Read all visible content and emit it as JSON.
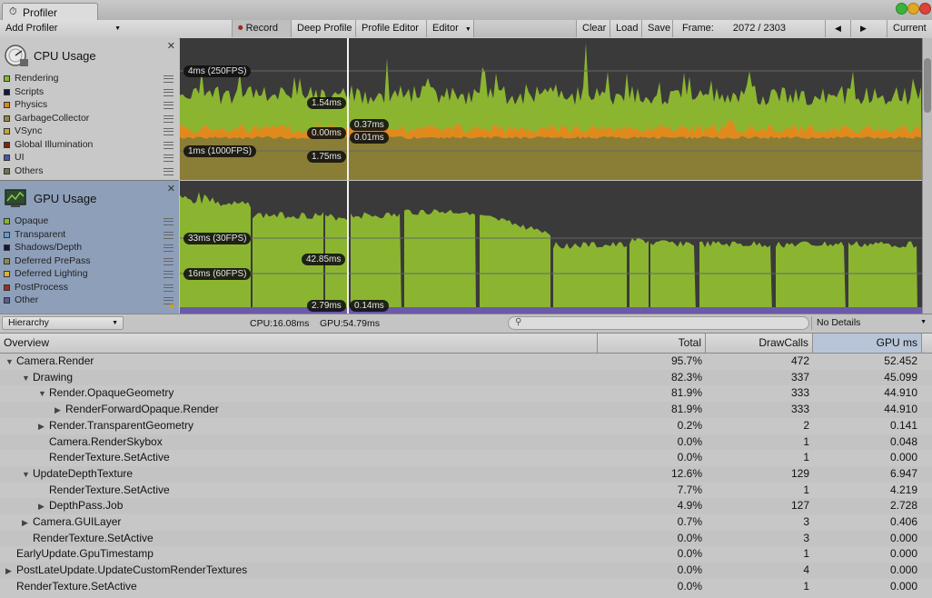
{
  "window": {
    "tab_title": "Profiler"
  },
  "toolbar": {
    "add_profiler": "Add Profiler",
    "record": "Record",
    "deep_profile": "Deep Profile",
    "profile_editor": "Profile Editor",
    "editor": "Editor",
    "clear": "Clear",
    "load": "Load",
    "save": "Save",
    "frame_label": "Frame:",
    "frame_value": "2072 / 2303",
    "prev": "◀",
    "next": "▶",
    "current": "Current"
  },
  "cpu": {
    "title": "CPU Usage",
    "legend": [
      {
        "label": "Rendering",
        "color": "#8bb531"
      },
      {
        "label": "Scripts",
        "color": "#15173c"
      },
      {
        "label": "Physics",
        "color": "#d5881e"
      },
      {
        "label": "GarbageCollector",
        "color": "#8d8a4b"
      },
      {
        "label": "VSync",
        "color": "#c8a52f"
      },
      {
        "label": "Global Illumination",
        "color": "#7b2416"
      },
      {
        "label": "UI",
        "color": "#4c56a4"
      },
      {
        "label": "Others",
        "color": "#76734a"
      }
    ],
    "labels": {
      "fps250": "4ms (250FPS)",
      "fps1000": "1ms (1000FPS)",
      "val1": "1.54ms",
      "val2": "0.00ms",
      "val3": "1.75ms",
      "val4": "0.37ms",
      "val5": "0.01ms"
    }
  },
  "gpu": {
    "title": "GPU Usage",
    "legend": [
      {
        "label": "Opaque",
        "color": "#8bb531"
      },
      {
        "label": "Transparent",
        "color": "#5f9fcb"
      },
      {
        "label": "Shadows/Depth",
        "color": "#15173c"
      },
      {
        "label": "Deferred PrePass",
        "color": "#8d8a4b"
      },
      {
        "label": "Deferred Lighting",
        "color": "#d9b537"
      },
      {
        "label": "PostProcess",
        "color": "#a32b23"
      },
      {
        "label": "Other",
        "color": "#5a5a8c"
      }
    ],
    "labels": {
      "fps30": "33ms (30FPS)",
      "fps60": "16ms (60FPS)",
      "val1": "42.85ms",
      "val2": "2.79ms",
      "val3": "0.14ms"
    }
  },
  "status": {
    "view": "Hierarchy",
    "cpu": "CPU:16.08ms",
    "gpu": "GPU:54.79ms",
    "details": "No Details"
  },
  "table": {
    "columns": [
      "Overview",
      "Total",
      "DrawCalls",
      "GPU ms"
    ],
    "rows": [
      {
        "name": "Camera.Render",
        "indent": 0,
        "arrow": "▼",
        "total": "95.7%",
        "drawcalls": "472",
        "gpu": "52.452"
      },
      {
        "name": "Drawing",
        "indent": 1,
        "arrow": "▼",
        "total": "82.3%",
        "drawcalls": "337",
        "gpu": "45.099"
      },
      {
        "name": "Render.OpaqueGeometry",
        "indent": 2,
        "arrow": "▼",
        "total": "81.9%",
        "drawcalls": "333",
        "gpu": "44.910"
      },
      {
        "name": "RenderForwardOpaque.Render",
        "indent": 3,
        "arrow": "▶",
        "total": "81.9%",
        "drawcalls": "333",
        "gpu": "44.910"
      },
      {
        "name": "Render.TransparentGeometry",
        "indent": 2,
        "arrow": "▶",
        "total": "0.2%",
        "drawcalls": "2",
        "gpu": "0.141"
      },
      {
        "name": "Camera.RenderSkybox",
        "indent": 2,
        "arrow": "",
        "total": "0.0%",
        "drawcalls": "1",
        "gpu": "0.048"
      },
      {
        "name": "RenderTexture.SetActive",
        "indent": 2,
        "arrow": "",
        "total": "0.0%",
        "drawcalls": "1",
        "gpu": "0.000"
      },
      {
        "name": "UpdateDepthTexture",
        "indent": 1,
        "arrow": "▼",
        "total": "12.6%",
        "drawcalls": "129",
        "gpu": "6.947"
      },
      {
        "name": "RenderTexture.SetActive",
        "indent": 2,
        "arrow": "",
        "total": "7.7%",
        "drawcalls": "1",
        "gpu": "4.219"
      },
      {
        "name": "DepthPass.Job",
        "indent": 2,
        "arrow": "▶",
        "total": "4.9%",
        "drawcalls": "127",
        "gpu": "2.728"
      },
      {
        "name": "Camera.GUILayer",
        "indent": 1,
        "arrow": "▶",
        "total": "0.7%",
        "drawcalls": "3",
        "gpu": "0.406"
      },
      {
        "name": "RenderTexture.SetActive",
        "indent": 1,
        "arrow": "",
        "total": "0.0%",
        "drawcalls": "3",
        "gpu": "0.000"
      },
      {
        "name": "EarlyUpdate.GpuTimestamp",
        "indent": 0,
        "arrow": "",
        "total": "0.0%",
        "drawcalls": "1",
        "gpu": "0.000"
      },
      {
        "name": "PostLateUpdate.UpdateCustomRenderTextures",
        "indent": 0,
        "arrow": "▶",
        "total": "0.0%",
        "drawcalls": "4",
        "gpu": "0.000"
      },
      {
        "name": "RenderTexture.SetActive",
        "indent": 0,
        "arrow": "",
        "total": "0.0%",
        "drawcalls": "1",
        "gpu": "0.000"
      }
    ]
  }
}
